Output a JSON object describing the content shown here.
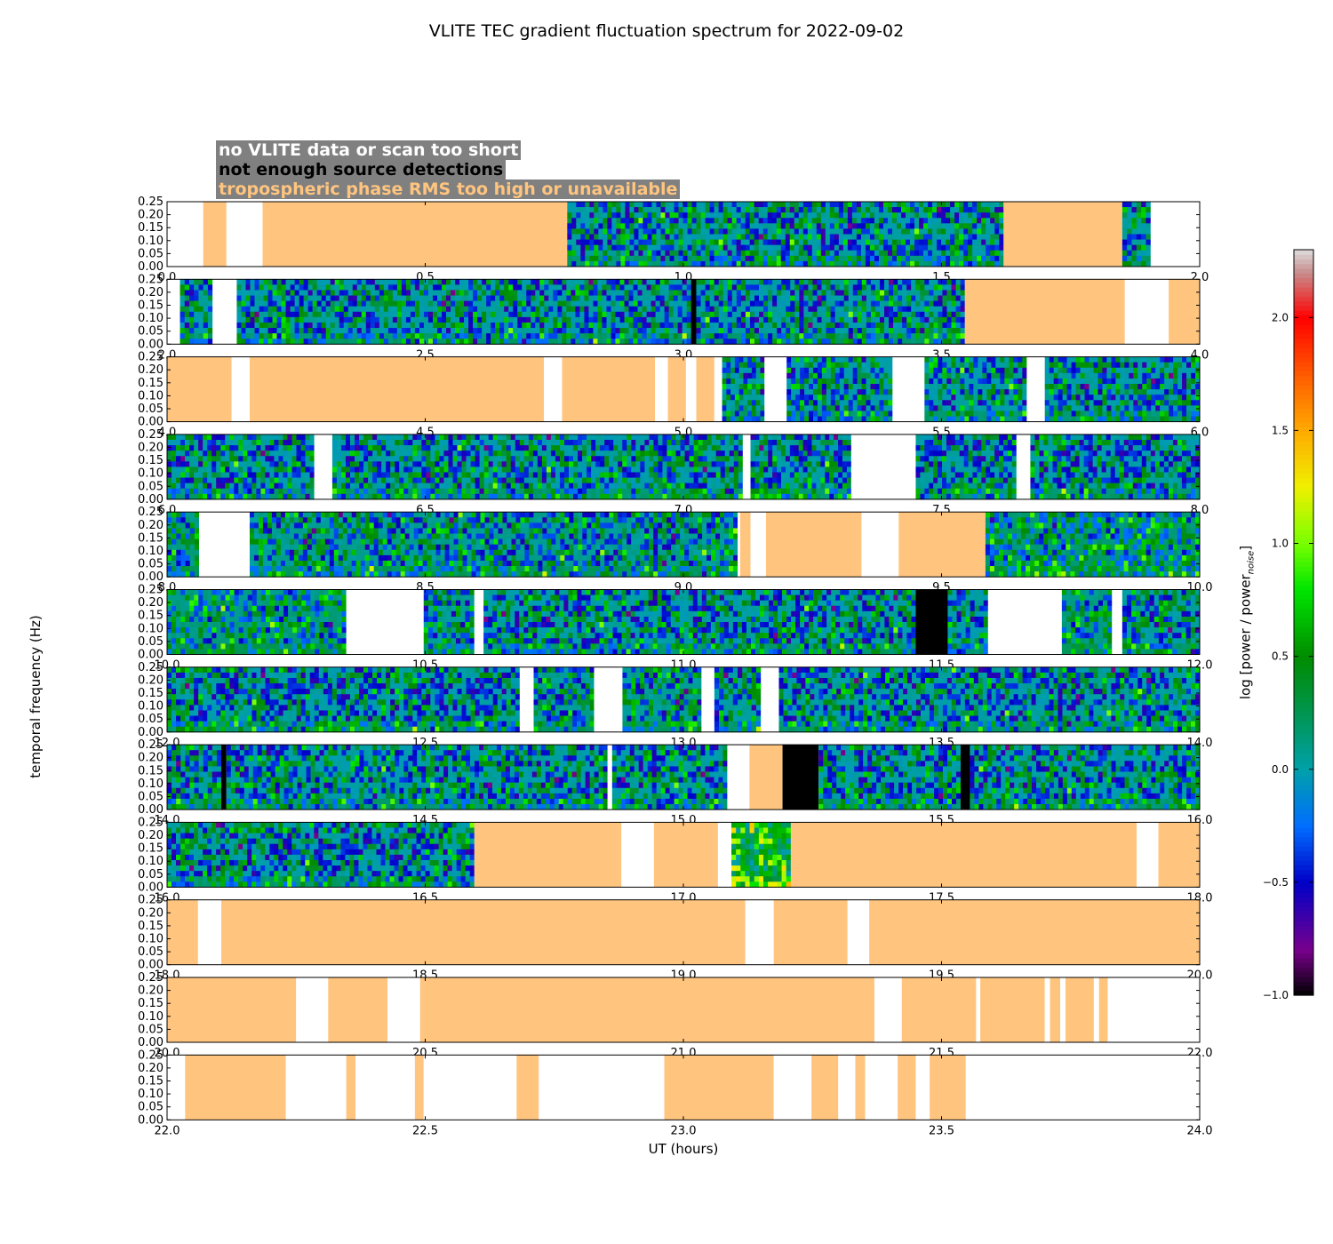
{
  "title": "VLITE TEC gradient fluctuation spectrum for 2022-09-02",
  "legend": {
    "no_data": {
      "label": "no VLITE data or scan too short",
      "color": "#ffffff"
    },
    "not_enough": {
      "label": "not enough source detections",
      "color": "#000000"
    },
    "tropo": {
      "label": "tropospheric phase RMS too high or unavailable",
      "color": "#ffc57f"
    },
    "background": "#808080"
  },
  "chart_data": {
    "type": "heatmap",
    "xlabel": "UT (hours)",
    "ylabel": "temporal frequency (Hz)",
    "ylim": [
      0,
      0.25
    ],
    "yticks": [
      "0.00",
      "0.05",
      "0.10",
      "0.15",
      "0.20",
      "0.25"
    ],
    "colorbar": {
      "label": "log [power / power",
      "label_sub": "noise",
      "label_end": "]",
      "range": [
        -1.0,
        2.3
      ],
      "ticks": [
        "−1.0",
        "−0.5",
        "0.0",
        "0.5",
        "1.0",
        "1.5",
        "2.0"
      ],
      "tick_values": [
        -1.0,
        -0.5,
        0.0,
        0.5,
        1.0,
        1.5,
        2.0
      ]
    },
    "panels": [
      {
        "range": [
          0,
          2
        ],
        "ticks": [
          "0.0",
          "0.5",
          "1.0",
          "1.5",
          "2.0"
        ],
        "segments": [
          {
            "t": "white",
            "s": 0.0,
            "e": 0.07
          },
          {
            "t": "orange",
            "s": 0.07,
            "e": 0.115
          },
          {
            "t": "white",
            "s": 0.115,
            "e": 0.185
          },
          {
            "t": "orange",
            "s": 0.185,
            "e": 0.775
          },
          {
            "t": "data",
            "s": 0.775,
            "e": 1.62,
            "m": 0
          },
          {
            "t": "orange",
            "s": 1.62,
            "e": 1.85
          },
          {
            "t": "data",
            "s": 1.85,
            "e": 1.905,
            "m": 0
          },
          {
            "t": "white",
            "s": 1.905,
            "e": 2.0
          }
        ]
      },
      {
        "range": [
          2,
          4
        ],
        "ticks": [
          "2.0",
          "2.5",
          "3.0",
          "3.5",
          "4.0"
        ],
        "segments": [
          {
            "t": "white",
            "s": 2.0,
            "e": 2.025
          },
          {
            "t": "data",
            "s": 2.025,
            "e": 2.088,
            "m": 0
          },
          {
            "t": "white",
            "s": 2.088,
            "e": 2.135
          },
          {
            "t": "data",
            "s": 2.135,
            "e": 3.015,
            "m": 0
          },
          {
            "t": "black",
            "s": 3.015,
            "e": 3.025
          },
          {
            "t": "data",
            "s": 3.025,
            "e": 3.545,
            "m": 0
          },
          {
            "t": "orange",
            "s": 3.545,
            "e": 3.855
          },
          {
            "t": "white",
            "s": 3.855,
            "e": 3.94
          },
          {
            "t": "orange",
            "s": 3.94,
            "e": 4.0
          }
        ]
      },
      {
        "range": [
          4,
          6
        ],
        "ticks": [
          "4.0",
          "4.5",
          "5.0",
          "5.5",
          "6.0"
        ],
        "segments": [
          {
            "t": "orange",
            "s": 4.0,
            "e": 4.125
          },
          {
            "t": "white",
            "s": 4.125,
            "e": 4.16
          },
          {
            "t": "orange",
            "s": 4.16,
            "e": 4.73
          },
          {
            "t": "white",
            "s": 4.73,
            "e": 4.765
          },
          {
            "t": "orange",
            "s": 4.765,
            "e": 4.945
          },
          {
            "t": "white",
            "s": 4.945,
            "e": 4.97
          },
          {
            "t": "orange",
            "s": 4.97,
            "e": 5.005
          },
          {
            "t": "white",
            "s": 5.005,
            "e": 5.025
          },
          {
            "t": "orange",
            "s": 5.025,
            "e": 5.06
          },
          {
            "t": "white",
            "s": 5.06,
            "e": 5.075
          },
          {
            "t": "data",
            "s": 5.075,
            "e": 5.157,
            "m": 0
          },
          {
            "t": "white",
            "s": 5.157,
            "e": 5.2
          },
          {
            "t": "data",
            "s": 5.2,
            "e": 5.405,
            "m": 0
          },
          {
            "t": "white",
            "s": 5.405,
            "e": 5.467
          },
          {
            "t": "data",
            "s": 5.467,
            "e": 5.665,
            "m": 0
          },
          {
            "t": "white",
            "s": 5.665,
            "e": 5.7
          },
          {
            "t": "data",
            "s": 5.7,
            "e": 6.0,
            "m": 0
          }
        ]
      },
      {
        "range": [
          6,
          8
        ],
        "ticks": [
          "6.0",
          "6.5",
          "7.0",
          "7.5",
          "8.0"
        ],
        "segments": [
          {
            "t": "data",
            "s": 6.0,
            "e": 6.285,
            "m": 0
          },
          {
            "t": "white",
            "s": 6.285,
            "e": 6.32
          },
          {
            "t": "data",
            "s": 6.32,
            "e": 7.115,
            "m": 0
          },
          {
            "t": "white",
            "s": 7.115,
            "e": 7.13
          },
          {
            "t": "data",
            "s": 7.13,
            "e": 7.325,
            "m": 0
          },
          {
            "t": "white",
            "s": 7.325,
            "e": 7.45
          },
          {
            "t": "data",
            "s": 7.45,
            "e": 7.645,
            "m": 0
          },
          {
            "t": "white",
            "s": 7.645,
            "e": 7.672
          },
          {
            "t": "data",
            "s": 7.672,
            "e": 8.0,
            "m": 0
          }
        ]
      },
      {
        "range": [
          8,
          10
        ],
        "ticks": [
          "8.0",
          "8.5",
          "9.0",
          "9.5",
          "10.0"
        ],
        "segments": [
          {
            "t": "data",
            "s": 8.0,
            "e": 8.062,
            "m": 0.1
          },
          {
            "t": "white",
            "s": 8.062,
            "e": 8.16
          },
          {
            "t": "data",
            "s": 8.16,
            "e": 9.105,
            "m": 0.05
          },
          {
            "t": "white",
            "s": 9.105,
            "e": 9.11
          },
          {
            "t": "orange",
            "s": 9.11,
            "e": 9.13
          },
          {
            "t": "white",
            "s": 9.13,
            "e": 9.16
          },
          {
            "t": "orange",
            "s": 9.16,
            "e": 9.345
          },
          {
            "t": "white",
            "s": 9.345,
            "e": 9.417
          },
          {
            "t": "orange",
            "s": 9.417,
            "e": 9.585
          },
          {
            "t": "data",
            "s": 9.585,
            "e": 10.0,
            "m": 0.15
          }
        ]
      },
      {
        "range": [
          10,
          12
        ],
        "ticks": [
          "10.0",
          "10.5",
          "11.0",
          "11.5",
          "12.0"
        ],
        "segments": [
          {
            "t": "data",
            "s": 10.0,
            "e": 10.347,
            "m": 0.1
          },
          {
            "t": "white",
            "s": 10.347,
            "e": 10.497
          },
          {
            "t": "data",
            "s": 10.497,
            "e": 10.595,
            "m": 0.05
          },
          {
            "t": "white",
            "s": 10.595,
            "e": 10.613
          },
          {
            "t": "data",
            "s": 10.613,
            "e": 11.45,
            "m": 0
          },
          {
            "t": "black",
            "s": 11.45,
            "e": 11.512
          },
          {
            "t": "data",
            "s": 11.512,
            "e": 11.59,
            "m": 0
          },
          {
            "t": "white",
            "s": 11.59,
            "e": 11.733
          },
          {
            "t": "data",
            "s": 11.733,
            "e": 11.83,
            "m": 0.1
          },
          {
            "t": "white",
            "s": 11.83,
            "e": 11.85
          },
          {
            "t": "data",
            "s": 11.85,
            "e": 12.0,
            "m": 0
          }
        ]
      },
      {
        "range": [
          12,
          14
        ],
        "ticks": [
          "12.0",
          "12.5",
          "13.0",
          "13.5",
          "14.0"
        ],
        "segments": [
          {
            "t": "data",
            "s": 12.0,
            "e": 12.683,
            "m": 0
          },
          {
            "t": "white",
            "s": 12.683,
            "e": 12.71
          },
          {
            "t": "data",
            "s": 12.71,
            "e": 12.827,
            "m": 0.05
          },
          {
            "t": "white",
            "s": 12.827,
            "e": 12.882
          },
          {
            "t": "data",
            "s": 12.882,
            "e": 13.035,
            "m": 0.05
          },
          {
            "t": "white",
            "s": 13.035,
            "e": 13.06
          },
          {
            "t": "data",
            "s": 13.06,
            "e": 13.15,
            "m": 0
          },
          {
            "t": "white",
            "s": 13.15,
            "e": 13.185
          },
          {
            "t": "data",
            "s": 13.185,
            "e": 14.0,
            "m": 0
          }
        ]
      },
      {
        "range": [
          14,
          16
        ],
        "ticks": [
          "14.0",
          "14.5",
          "15.0",
          "15.5",
          "16.0"
        ],
        "segments": [
          {
            "t": "data",
            "s": 14.0,
            "e": 14.105,
            "m": 0
          },
          {
            "t": "black",
            "s": 14.105,
            "e": 14.115
          },
          {
            "t": "data",
            "s": 14.115,
            "e": 14.853,
            "m": 0
          },
          {
            "t": "white",
            "s": 14.853,
            "e": 14.862
          },
          {
            "t": "data",
            "s": 14.862,
            "e": 15.085,
            "m": 0
          },
          {
            "t": "white",
            "s": 15.085,
            "e": 15.128
          },
          {
            "t": "orange",
            "s": 15.128,
            "e": 15.192
          },
          {
            "t": "black",
            "s": 15.192,
            "e": 15.262
          },
          {
            "t": "data",
            "s": 15.262,
            "e": 15.537,
            "m": 0
          },
          {
            "t": "black",
            "s": 15.537,
            "e": 15.555
          },
          {
            "t": "data",
            "s": 15.555,
            "e": 16.0,
            "m": 0
          }
        ]
      },
      {
        "range": [
          16,
          18
        ],
        "ticks": [
          "16.0",
          "16.5",
          "17.0",
          "17.5",
          "18.0"
        ],
        "segments": [
          {
            "t": "data",
            "s": 16.0,
            "e": 16.595,
            "m": 0
          },
          {
            "t": "orange",
            "s": 16.595,
            "e": 16.88
          },
          {
            "t": "white",
            "s": 16.88,
            "e": 16.943
          },
          {
            "t": "orange",
            "s": 16.943,
            "e": 17.067
          },
          {
            "t": "white",
            "s": 17.067,
            "e": 17.093
          },
          {
            "t": "data",
            "s": 17.093,
            "e": 17.208,
            "m": 0.6
          },
          {
            "t": "orange",
            "s": 17.208,
            "e": 17.878
          },
          {
            "t": "white",
            "s": 17.878,
            "e": 17.92
          },
          {
            "t": "orange",
            "s": 17.92,
            "e": 18.0
          }
        ]
      },
      {
        "range": [
          18,
          20
        ],
        "ticks": [
          "18.0",
          "18.5",
          "19.0",
          "19.5",
          "20.0"
        ],
        "segments": [
          {
            "t": "orange",
            "s": 18.0,
            "e": 18.06
          },
          {
            "t": "white",
            "s": 18.06,
            "e": 18.105
          },
          {
            "t": "orange",
            "s": 18.105,
            "e": 19.12
          },
          {
            "t": "white",
            "s": 19.12,
            "e": 19.175
          },
          {
            "t": "orange",
            "s": 19.175,
            "e": 19.318
          },
          {
            "t": "white",
            "s": 19.318,
            "e": 19.36
          },
          {
            "t": "orange",
            "s": 19.36,
            "e": 20.0
          }
        ]
      },
      {
        "range": [
          20,
          22
        ],
        "ticks": [
          "20.0",
          "20.5",
          "21.0",
          "21.5",
          "22.0"
        ],
        "segments": [
          {
            "t": "orange",
            "s": 20.0,
            "e": 20.25
          },
          {
            "t": "white",
            "s": 20.25,
            "e": 20.312
          },
          {
            "t": "orange",
            "s": 20.312,
            "e": 20.427
          },
          {
            "t": "white",
            "s": 20.427,
            "e": 20.49
          },
          {
            "t": "orange",
            "s": 20.49,
            "e": 21.37
          },
          {
            "t": "white",
            "s": 21.37,
            "e": 21.423
          },
          {
            "t": "orange",
            "s": 21.423,
            "e": 21.567
          },
          {
            "t": "white",
            "s": 21.567,
            "e": 21.575
          },
          {
            "t": "orange",
            "s": 21.575,
            "e": 21.7
          },
          {
            "t": "white",
            "s": 21.7,
            "e": 21.71
          },
          {
            "t": "orange",
            "s": 21.71,
            "e": 21.73
          },
          {
            "t": "white",
            "s": 21.73,
            "e": 21.74
          },
          {
            "t": "orange",
            "s": 21.74,
            "e": 21.795
          },
          {
            "t": "white",
            "s": 21.795,
            "e": 21.805
          },
          {
            "t": "orange",
            "s": 21.805,
            "e": 21.822
          },
          {
            "t": "white",
            "s": 21.822,
            "e": 22.0
          }
        ]
      },
      {
        "range": [
          22,
          24
        ],
        "ticks": [
          "22.0",
          "22.5",
          "23.0",
          "23.5",
          "24.0"
        ],
        "segments": [
          {
            "t": "white",
            "s": 22.0,
            "e": 22.035
          },
          {
            "t": "orange",
            "s": 22.035,
            "e": 22.23
          },
          {
            "t": "white",
            "s": 22.23,
            "e": 22.347
          },
          {
            "t": "orange",
            "s": 22.347,
            "e": 22.365
          },
          {
            "t": "white",
            "s": 22.365,
            "e": 22.48
          },
          {
            "t": "orange",
            "s": 22.48,
            "e": 22.497
          },
          {
            "t": "white",
            "s": 22.497,
            "e": 22.677
          },
          {
            "t": "orange",
            "s": 22.677,
            "e": 22.72
          },
          {
            "t": "white",
            "s": 22.72,
            "e": 22.963
          },
          {
            "t": "orange",
            "s": 22.963,
            "e": 23.175
          },
          {
            "t": "white",
            "s": 23.175,
            "e": 23.248
          },
          {
            "t": "orange",
            "s": 23.248,
            "e": 23.3
          },
          {
            "t": "white",
            "s": 23.3,
            "e": 23.333
          },
          {
            "t": "orange",
            "s": 23.333,
            "e": 23.352
          },
          {
            "t": "white",
            "s": 23.352,
            "e": 23.415
          },
          {
            "t": "orange",
            "s": 23.415,
            "e": 23.45
          },
          {
            "t": "white",
            "s": 23.45,
            "e": 23.477
          },
          {
            "t": "orange",
            "s": 23.477,
            "e": 23.547
          },
          {
            "t": "white",
            "s": 23.547,
            "e": 24.0
          }
        ]
      }
    ]
  }
}
